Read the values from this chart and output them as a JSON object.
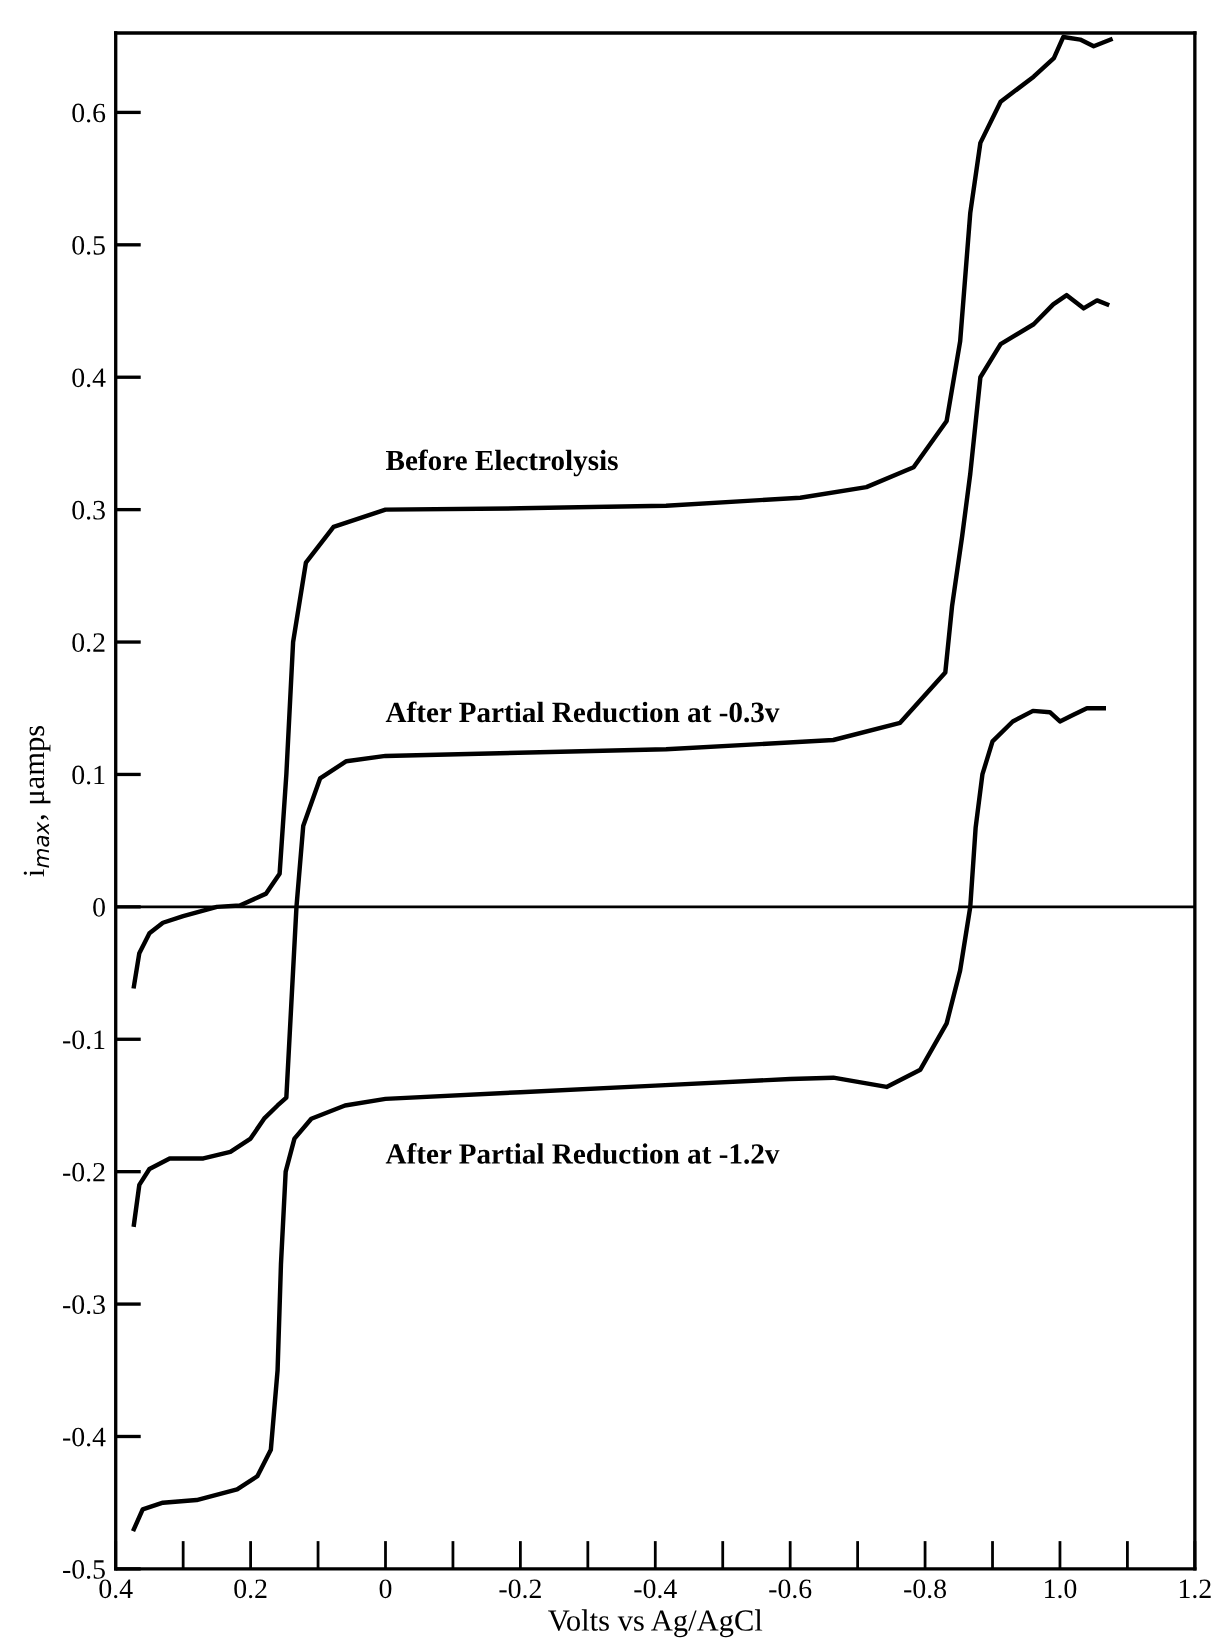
{
  "chart_data": {
    "type": "line",
    "xlabel": "Volts vs Ag/AgCl",
    "ylabel": "i$_{max}$, μamps",
    "xlim": [
      0.4,
      -1.2
    ],
    "ylim": [
      -0.5,
      0.66
    ],
    "xticks": [
      0.4,
      {
        "value": 0.3,
        "label": null
      },
      0.2,
      {
        "value": 0.1,
        "label": null
      },
      0,
      {
        "value": -0.1,
        "label": null
      },
      -0.2,
      {
        "value": -0.3,
        "label": null
      },
      -0.4,
      {
        "value": -0.5,
        "label": null
      },
      -0.6,
      {
        "value": -0.7,
        "label": null
      },
      -0.8,
      {
        "value": -0.9,
        "label": null
      },
      {
        "value": -1.0,
        "label": "1.0"
      },
      {
        "value": -1.1,
        "label": null
      },
      {
        "value": -1.2,
        "label": "1.2"
      }
    ],
    "yticks": [
      -0.5,
      -0.4,
      -0.3,
      -0.2,
      -0.1,
      0,
      0.1,
      0.2,
      0.3,
      0.4,
      0.5,
      0.6
    ],
    "grid": false,
    "legend": false,
    "marker": "none",
    "line_style": "solid",
    "ref_lines": [
      {
        "axis": "y",
        "value": 0,
        "color": "#000000"
      }
    ],
    "series": [
      {
        "name": "Before Electrolysis",
        "color": "#000000",
        "x": [
          0.373,
          0.365,
          0.35,
          0.33,
          0.3,
          0.25,
          0.216,
          0.177,
          0.157,
          0.147,
          0.137,
          0.118,
          0.077,
          0.0,
          -0.2,
          -0.416,
          -0.615,
          -0.713,
          -0.783,
          -0.832,
          -0.852,
          -0.867,
          -0.882,
          -0.912,
          -0.961,
          -0.991,
          -1.005,
          -1.03,
          -1.05,
          -1.075
        ],
        "values": [
          -0.06,
          -0.035,
          -0.02,
          -0.012,
          -0.007,
          0.0,
          0.001,
          0.01,
          0.025,
          0.1,
          0.2,
          0.26,
          0.287,
          0.3,
          0.301,
          0.303,
          0.309,
          0.317,
          0.332,
          0.367,
          0.427,
          0.524,
          0.577,
          0.608,
          0.627,
          0.641,
          0.657,
          0.655,
          0.65,
          0.655
        ]
      },
      {
        "name": "After Partial Reduction at -0.3v",
        "color": "#000000",
        "x": [
          0.373,
          0.365,
          0.35,
          0.32,
          0.27,
          0.23,
          0.2,
          0.18,
          0.16,
          0.147,
          0.132,
          0.122,
          0.097,
          0.058,
          0.0,
          -0.416,
          -0.664,
          -0.763,
          -0.83,
          -0.84,
          -0.855,
          -0.867,
          -0.882,
          -0.912,
          -0.961,
          -0.99,
          -1.01,
          -1.035,
          -1.055,
          -1.07
        ],
        "values": [
          -0.24,
          -0.21,
          -0.198,
          -0.19,
          -0.19,
          -0.185,
          -0.175,
          -0.16,
          -0.15,
          -0.144,
          0.0,
          0.061,
          0.097,
          0.11,
          0.114,
          0.119,
          0.126,
          0.139,
          0.177,
          0.227,
          0.28,
          0.327,
          0.4,
          0.425,
          0.44,
          0.455,
          0.462,
          0.452,
          0.458,
          0.455
        ]
      },
      {
        "name": "After Partial Reduction at -1.2v",
        "color": "#000000",
        "x": [
          0.373,
          0.36,
          0.33,
          0.28,
          0.22,
          0.19,
          0.17,
          0.16,
          0.155,
          0.148,
          0.135,
          0.11,
          0.06,
          0.0,
          -0.2,
          -0.4,
          -0.6,
          -0.664,
          -0.743,
          -0.793,
          -0.832,
          -0.852,
          -0.867,
          -0.875,
          -0.885,
          -0.9,
          -0.93,
          -0.96,
          -0.985,
          -1.0,
          -1.02,
          -1.04,
          -1.065
        ],
        "values": [
          -0.47,
          -0.455,
          -0.45,
          -0.448,
          -0.44,
          -0.43,
          -0.41,
          -0.35,
          -0.27,
          -0.2,
          -0.175,
          -0.16,
          -0.15,
          -0.145,
          -0.14,
          -0.135,
          -0.13,
          -0.129,
          -0.136,
          -0.123,
          -0.088,
          -0.048,
          0.0,
          0.06,
          0.1,
          0.125,
          0.14,
          0.148,
          0.147,
          0.14,
          0.145,
          0.15,
          0.15
        ]
      }
    ]
  }
}
